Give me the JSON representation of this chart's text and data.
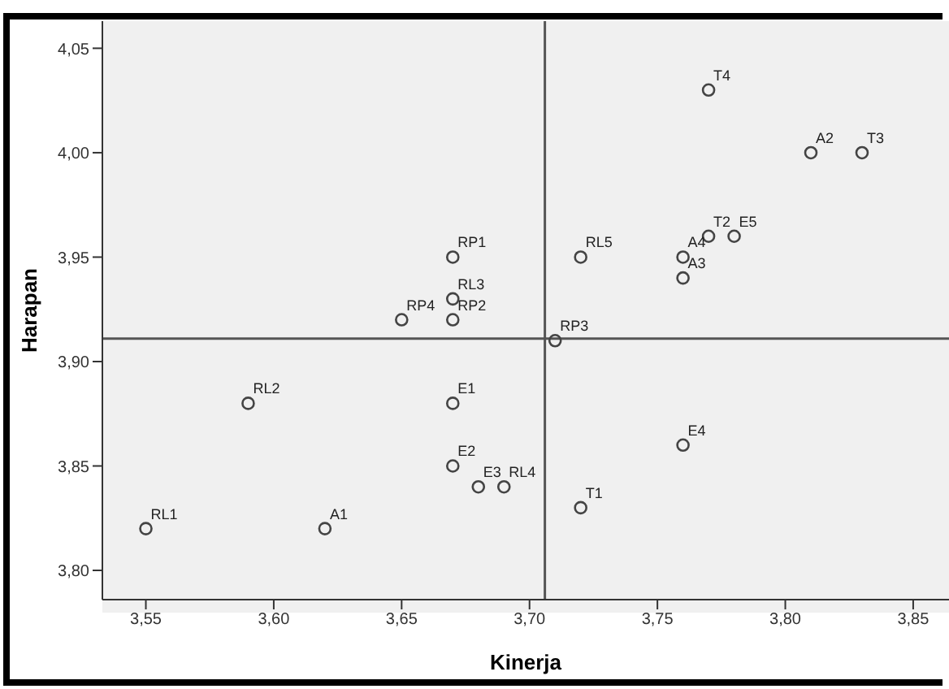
{
  "chart_data": {
    "type": "scatter",
    "xlabel": "Kinerja",
    "ylabel": "Harapan",
    "x": [
      3.55,
      3.59,
      3.62,
      3.65,
      3.67,
      3.67,
      3.67,
      3.67,
      3.67,
      3.68,
      3.69,
      3.71,
      3.72,
      3.76,
      3.76,
      3.77,
      3.78,
      3.76,
      3.72,
      3.77,
      3.81,
      3.83
    ],
    "values": [
      3.82,
      3.88,
      3.82,
      3.92,
      3.95,
      3.93,
      3.92,
      3.88,
      3.85,
      3.84,
      3.84,
      3.91,
      3.95,
      3.95,
      3.94,
      3.96,
      3.96,
      3.86,
      3.83,
      4.03,
      4.0,
      4.0
    ],
    "value_labels": [
      "RL1",
      "RL2",
      "A1",
      "RP4",
      "RP1",
      "RL3",
      "RP2",
      "E1",
      "E2",
      "E3",
      "RL4",
      "RP3",
      "RL5",
      "A4",
      "A3",
      "T2",
      "E5",
      "E4",
      "T1",
      "T4",
      "A2",
      "T3"
    ],
    "color": "#444444",
    "marker": "circle",
    "grid": false,
    "legend": false,
    "xlim": [
      3.533,
      3.864
    ],
    "ylim": [
      3.786,
      4.063
    ],
    "xticks": [
      {
        "value": 3.55,
        "label": "3,55"
      },
      {
        "value": 3.6,
        "label": "3,60"
      },
      {
        "value": 3.65,
        "label": "3,65"
      },
      {
        "value": 3.7,
        "label": "3,70"
      },
      {
        "value": 3.75,
        "label": "3,75"
      },
      {
        "value": 3.8,
        "label": "3,80"
      },
      {
        "value": 3.85,
        "label": "3,85"
      }
    ],
    "yticks": [
      {
        "value": 3.8,
        "label": "3,80"
      },
      {
        "value": 3.85,
        "label": "3,85"
      },
      {
        "value": 3.9,
        "label": "3,90"
      },
      {
        "value": 3.95,
        "label": "3,95"
      },
      {
        "value": 4.0,
        "label": "4,00"
      },
      {
        "value": 4.05,
        "label": "4,05"
      }
    ],
    "ref_lines": [
      {
        "axis": "x",
        "value": 3.706,
        "color": "#555555"
      },
      {
        "axis": "y",
        "value": 3.911,
        "color": "#555555"
      }
    ]
  }
}
